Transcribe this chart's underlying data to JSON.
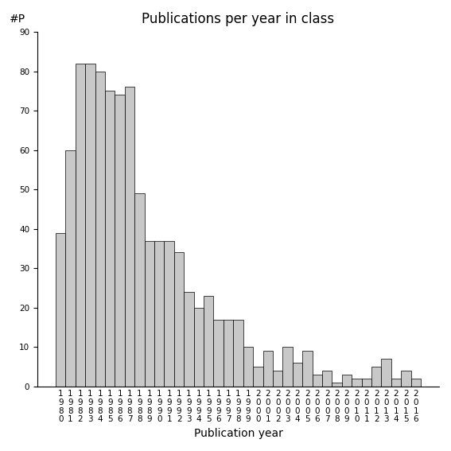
{
  "title": "Publications per year in class",
  "xlabel": "Publication year",
  "ylabel": "#P",
  "ylim": [
    0,
    90
  ],
  "yticks": [
    0,
    10,
    20,
    30,
    40,
    50,
    60,
    70,
    80,
    90
  ],
  "bar_color": "#c8c8c8",
  "bar_edge_color": "#000000",
  "bar_linewidth": 0.5,
  "years": [
    "1980",
    "1981",
    "1982",
    "1983",
    "1984",
    "1985",
    "1986",
    "1987",
    "1988",
    "1989",
    "1990",
    "1991",
    "1992",
    "1993",
    "1994",
    "1995",
    "1996",
    "1997",
    "1998",
    "1999",
    "2000",
    "2001",
    "2002",
    "2003",
    "2004",
    "2005",
    "2006",
    "2007",
    "2008",
    "2009",
    "2010",
    "2011",
    "2012",
    "2013",
    "2014",
    "2015",
    "2016"
  ],
  "values": [
    39,
    60,
    82,
    82,
    80,
    75,
    74,
    76,
    49,
    37,
    37,
    37,
    34,
    24,
    20,
    23,
    17,
    17,
    17,
    10,
    5,
    9,
    4,
    10,
    6,
    9,
    3,
    4,
    1,
    3,
    2,
    2,
    5,
    7,
    2,
    4,
    2
  ],
  "background_color": "#ffffff",
  "title_fontsize": 12,
  "label_fontsize": 10,
  "tick_fontsize": 7.5
}
